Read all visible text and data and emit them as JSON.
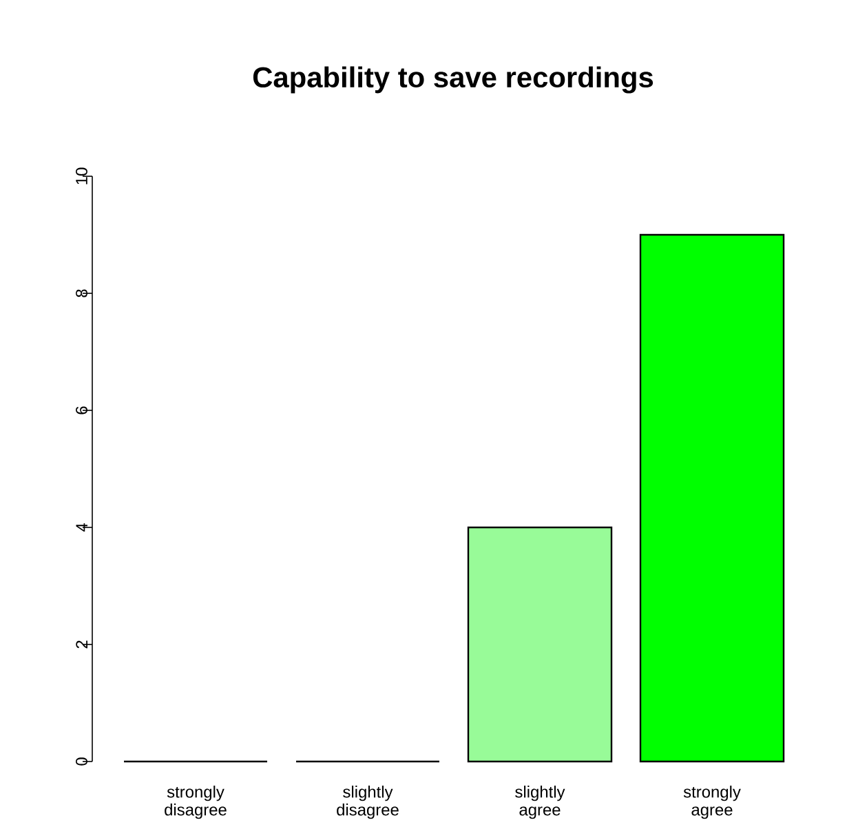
{
  "chart_data": {
    "type": "bar",
    "title": "Capability to save recordings",
    "categories": [
      "strongly disagree",
      "slightly disagree",
      "slightly agree",
      "strongly agree"
    ],
    "values": [
      0,
      0,
      4,
      9
    ],
    "colors": [
      "#ff0000",
      "#ff9999",
      "#98fb98",
      "#00ff00"
    ],
    "ylim": [
      0,
      10
    ],
    "yticks": [
      0,
      2,
      4,
      6,
      8,
      10
    ]
  }
}
